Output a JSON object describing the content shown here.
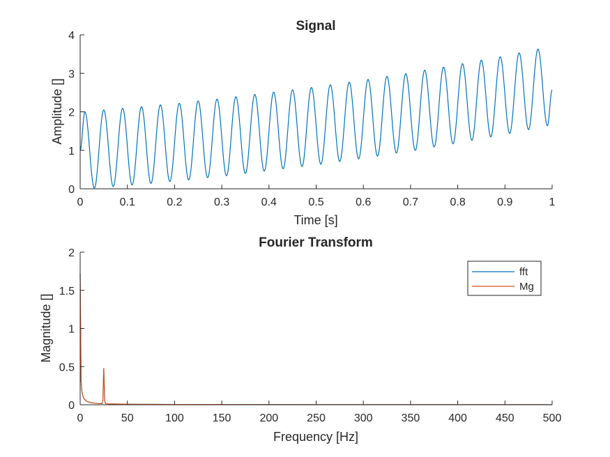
{
  "chart_data": [
    {
      "type": "line",
      "title": "Signal",
      "xlabel": "Time [s]",
      "ylabel": "Amplitude []",
      "xlim": [
        0,
        1
      ],
      "ylim": [
        0,
        4
      ],
      "xticks": [
        0,
        0.1,
        0.2,
        0.3,
        0.4,
        0.5,
        0.6,
        0.7,
        0.8,
        0.9,
        1
      ],
      "xtick_labels": [
        "0",
        "0.1",
        "0.2",
        "0.3",
        "0.4",
        "0.5",
        "0.6",
        "0.7",
        "0.8",
        "0.9",
        "1"
      ],
      "yticks": [
        0,
        1,
        2,
        3,
        4
      ],
      "ytick_labels": [
        "0",
        "1",
        "2",
        "3",
        "4"
      ],
      "grid": false,
      "series": [
        {
          "color": "#0072BD",
          "x": [
            0,
            0.01,
            0.03,
            0.05,
            0.07,
            0.09,
            0.11,
            0.13,
            0.15,
            0.17,
            0.19,
            0.21,
            0.23,
            0.25,
            0.27,
            0.29,
            0.31,
            0.33,
            0.35,
            0.37,
            0.39,
            0.41,
            0.43,
            0.45,
            0.47,
            0.49,
            0.51,
            0.53,
            0.55,
            0.57,
            0.59,
            0.61,
            0.63,
            0.65,
            0.67,
            0.69,
            0.71,
            0.73,
            0.75,
            0.77,
            0.79,
            0.81,
            0.83,
            0.85,
            0.87,
            0.89,
            0.91,
            0.93,
            0.95,
            0.97,
            0.99,
            1
          ],
          "y": [
            1.0,
            2.0,
            0.02,
            2.05,
            0.06,
            2.09,
            0.1,
            2.13,
            0.14,
            2.18,
            0.19,
            2.22,
            0.23,
            2.28,
            0.29,
            2.33,
            0.34,
            2.39,
            0.4,
            2.45,
            0.46,
            2.51,
            0.52,
            2.57,
            0.58,
            2.63,
            0.64,
            2.7,
            0.71,
            2.77,
            0.78,
            2.84,
            0.85,
            2.92,
            0.93,
            2.99,
            1.0,
            3.08,
            1.09,
            3.16,
            1.17,
            3.25,
            1.26,
            3.34,
            1.35,
            3.43,
            1.44,
            3.53,
            1.54,
            3.63,
            1.64,
            2.57
          ]
        }
      ]
    },
    {
      "type": "line",
      "title": "Fourier Transform",
      "xlabel": "Frequency [Hz]",
      "ylabel": "Magnitude []",
      "xlim": [
        0,
        500
      ],
      "ylim": [
        0,
        2
      ],
      "xticks": [
        0,
        50,
        100,
        150,
        200,
        250,
        300,
        350,
        400,
        450,
        500
      ],
      "xtick_labels": [
        "0",
        "50",
        "100",
        "150",
        "200",
        "250",
        "300",
        "350",
        "400",
        "450",
        "500"
      ],
      "yticks": [
        0,
        0.5,
        1,
        1.5,
        2
      ],
      "ytick_labels": [
        "0",
        "0.5",
        "1",
        "1.5",
        "2"
      ],
      "grid": false,
      "legend": {
        "placement": "top-right",
        "entries": [
          "fft",
          "Mg"
        ]
      },
      "series": [
        {
          "name": "fft",
          "color": "#0072BD",
          "x": [
            0,
            1,
            2,
            3,
            4,
            6,
            8,
            10,
            13,
            16,
            20,
            23,
            24,
            25,
            26,
            27,
            30,
            40,
            60,
            100,
            200,
            300,
            400,
            500
          ],
          "y": [
            1.72,
            0.3,
            0.16,
            0.11,
            0.08,
            0.055,
            0.04,
            0.032,
            0.025,
            0.02,
            0.016,
            0.015,
            0.05,
            0.48,
            0.05,
            0.014,
            0.012,
            0.009,
            0.006,
            0.004,
            0.002,
            0.0015,
            0.0012,
            0.001
          ]
        },
        {
          "name": "Mg",
          "color": "#D95319",
          "x": [
            0,
            1,
            2,
            3,
            4,
            6,
            8,
            10,
            13,
            16,
            20,
            23,
            24,
            25,
            26,
            27,
            30,
            40,
            60,
            100,
            200,
            300,
            400,
            500
          ],
          "y": [
            1.72,
            0.3,
            0.16,
            0.11,
            0.08,
            0.055,
            0.04,
            0.032,
            0.025,
            0.02,
            0.016,
            0.015,
            0.05,
            0.48,
            0.05,
            0.014,
            0.012,
            0.009,
            0.006,
            0.004,
            0.002,
            0.0015,
            0.0012,
            0.001
          ]
        }
      ]
    }
  ]
}
